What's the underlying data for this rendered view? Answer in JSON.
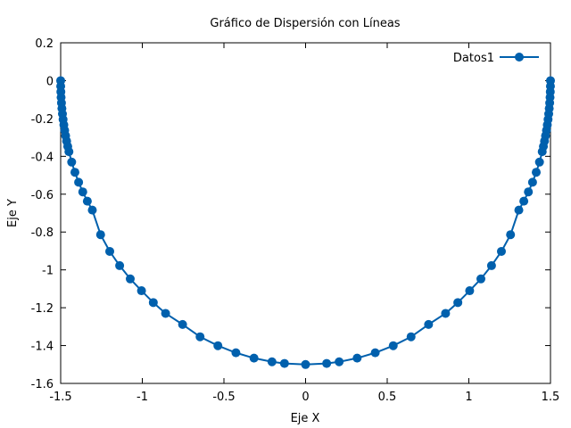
{
  "chart_data": {
    "type": "line",
    "title": "Gráfico de Dispersión con Líneas",
    "xlabel": "Eje X",
    "ylabel": "Eje Y",
    "xlim": [
      -1.5,
      1.5
    ],
    "ylim": [
      -1.6,
      0.2
    ],
    "xticks": [
      -1.5,
      -1,
      -0.5,
      0,
      0.5,
      1,
      1.5
    ],
    "xtick_labels": [
      "-1.5",
      "-1",
      "-0.5",
      "0",
      "0.5",
      "1",
      "1.5"
    ],
    "yticks": [
      -1.6,
      -1.4,
      -1.2,
      -1,
      -0.8,
      -0.6,
      -0.4,
      -0.2,
      0,
      0.2
    ],
    "ytick_labels": [
      "-1.6",
      "-1.4",
      "-1.2",
      "-1",
      "-0.8",
      "-0.6",
      "-0.4",
      "-0.2",
      "0",
      "0.2"
    ],
    "grid": false,
    "legend_position": "top-right",
    "series": [
      {
        "name": "Datos1",
        "color": "#0060ad",
        "marker": "circle",
        "x": [
          -1.5,
          -1.4997,
          -1.4988,
          -1.4973,
          -1.4951,
          -1.4924,
          -1.4891,
          -1.4852,
          -1.4806,
          -1.4755,
          -1.4698,
          -1.4636,
          -1.4567,
          -1.4494,
          -1.4326,
          -1.4127,
          -1.3901,
          -1.3647,
          -1.3367,
          -1.3062,
          -1.2554,
          -1.1994,
          -1.1388,
          -1.0738,
          -1.005,
          -0.9326,
          -0.8574,
          -0.7533,
          -0.6462,
          -0.537,
          -0.4266,
          -0.3159,
          -0.2058,
          -0.1292,
          0,
          0.1292,
          0.2058,
          0.3159,
          0.4266,
          0.537,
          0.6462,
          0.7533,
          0.8574,
          0.9326,
          1.005,
          1.0738,
          1.1388,
          1.1994,
          1.2554,
          1.3062,
          1.3367,
          1.3647,
          1.3901,
          1.4127,
          1.4326,
          1.4494,
          1.4567,
          1.4636,
          1.4698,
          1.4755,
          1.4806,
          1.4852,
          1.4891,
          1.4924,
          1.4951,
          1.4973,
          1.4988,
          1.4997,
          1.5
        ],
        "y": [
          0,
          -0.0295,
          -0.0589,
          -0.0883,
          -0.1176,
          -0.1468,
          -0.1759,
          -0.2049,
          -0.2337,
          -0.2624,
          -0.2909,
          -0.3193,
          -0.3473,
          -0.3752,
          -0.4304,
          -0.4843,
          -0.5369,
          -0.5878,
          -0.6369,
          -0.6841,
          -0.8141,
          -0.9025,
          -0.9776,
          -1.0477,
          -1.1101,
          -1.1727,
          -1.2298,
          -1.2885,
          -1.3536,
          -1.4007,
          -1.4381,
          -1.4664,
          -1.4858,
          -1.4944,
          -1.5,
          -1.4944,
          -1.4858,
          -1.4664,
          -1.4381,
          -1.4007,
          -1.3536,
          -1.2885,
          -1.2298,
          -1.1727,
          -1.1101,
          -1.0477,
          -0.9776,
          -0.9025,
          -0.8141,
          -0.6841,
          -0.6369,
          -0.5878,
          -0.5369,
          -0.4843,
          -0.4304,
          -0.3752,
          -0.3473,
          -0.3193,
          -0.2909,
          -0.2624,
          -0.2337,
          -0.2049,
          -0.1759,
          -0.1468,
          -0.1176,
          -0.0883,
          -0.0589,
          -0.0295,
          0
        ]
      }
    ]
  }
}
